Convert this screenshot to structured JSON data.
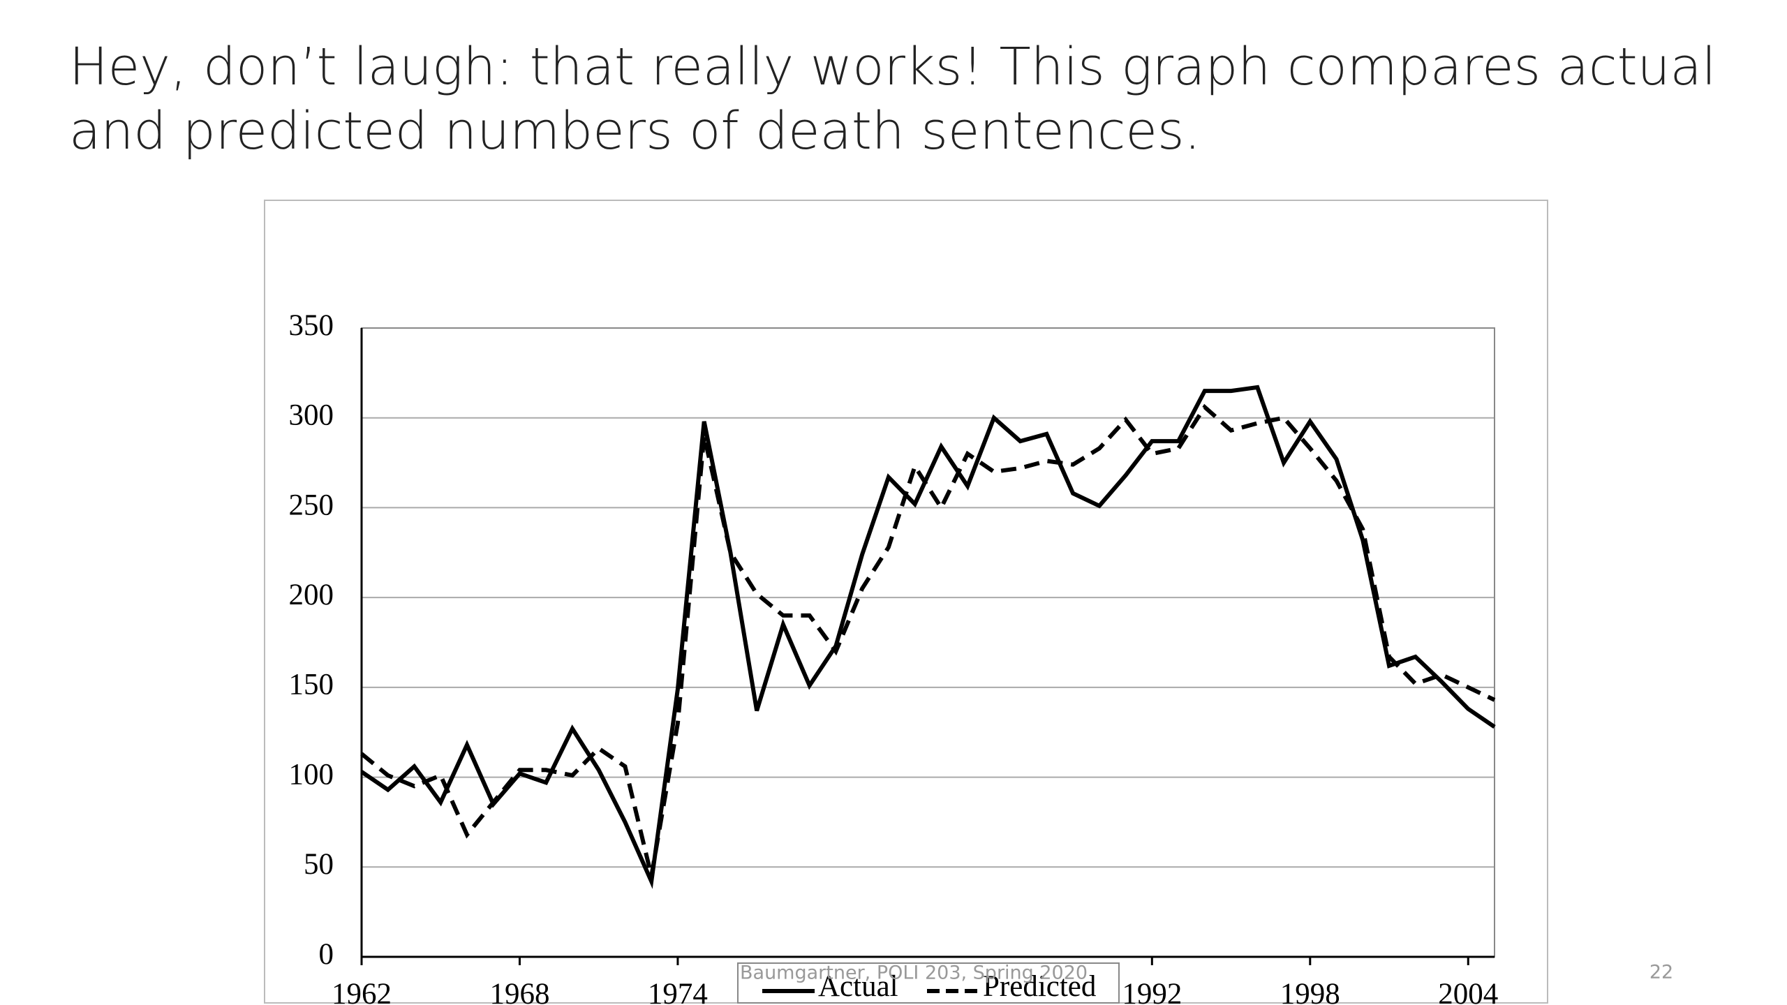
{
  "slide": {
    "heading": "Hey, don’t laugh: that really works! This graph compares actual and predicted numbers of death sentences.",
    "footer": "Baumgartner, POLI 203, Spring 2020",
    "page_number": "22"
  },
  "chart_data": {
    "type": "line",
    "x": [
      1962,
      1963,
      1964,
      1965,
      1966,
      1967,
      1968,
      1969,
      1970,
      1971,
      1972,
      1973,
      1974,
      1975,
      1976,
      1977,
      1978,
      1979,
      1980,
      1981,
      1982,
      1983,
      1984,
      1985,
      1986,
      1987,
      1988,
      1989,
      1990,
      1991,
      1992,
      1993,
      1994,
      1995,
      1996,
      1997,
      1998,
      1999,
      2000,
      2001,
      2002,
      2003,
      2004,
      2005
    ],
    "series": [
      {
        "name": "Actual",
        "color": "#000000",
        "dash": "solid",
        "values": [
          103,
          93,
          106,
          86,
          118,
          85,
          102,
          97,
          127,
          104,
          75,
          42,
          149,
          298,
          225,
          137,
          185,
          151,
          173,
          224,
          267,
          252,
          284,
          262,
          300,
          287,
          291,
          258,
          251,
          268,
          287,
          287,
          315,
          315,
          317,
          275,
          298,
          277,
          232,
          162,
          167,
          153,
          138,
          128
        ]
      },
      {
        "name": "Predicted",
        "color": "#000000",
        "dash": "dashed",
        "values": [
          113,
          101,
          95,
          101,
          68,
          86,
          104,
          104,
          101,
          116,
          106,
          45,
          130,
          290,
          225,
          202,
          190,
          190,
          170,
          205,
          228,
          273,
          250,
          280,
          270,
          272,
          276,
          274,
          283,
          299,
          280,
          283,
          306,
          293,
          297,
          300,
          283,
          265,
          238,
          167,
          152,
          157,
          150,
          143
        ]
      }
    ],
    "xlim": [
      1962,
      2005
    ],
    "xticks": [
      1962,
      1968,
      1974,
      1992,
      1998,
      2004
    ],
    "ylim": [
      0,
      350
    ],
    "yticks": [
      0,
      50,
      100,
      150,
      200,
      250,
      300,
      350
    ],
    "grid": true,
    "legend": "bottom"
  }
}
